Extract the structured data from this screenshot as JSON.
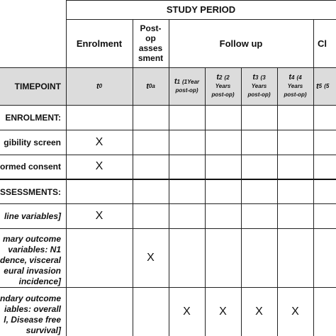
{
  "header": {
    "study_period": "STUDY PERIOD",
    "enrolment": "Enrolment",
    "postop_l1": "Post-",
    "postop_l2": "op",
    "postop_l3": "asses",
    "postop_l4": "sment",
    "follow_up": "Follow up",
    "close_partial": "Cl"
  },
  "timepoints": {
    "label": "TIMEPOINT",
    "t0": "t",
    "t0_sub": "0",
    "t0a": "t",
    "t0a_sub": "0a",
    "t1": "t",
    "t1_sub": "1",
    "t1_note_a": "(1Year",
    "t1_note_b": "post-op)",
    "t2": "t",
    "t2_sub": "2",
    "t2_note_a": "(2",
    "t2_note_b": "Years",
    "t2_note_c": "post-op)",
    "t3": "t",
    "t3_sub": "3",
    "t3_note_a": "(3",
    "t3_note_b": "Years",
    "t3_note_c": "post-op)",
    "t4": "t",
    "t4_sub": "4",
    "t4_note_a": "(4",
    "t4_note_b": "Years",
    "t4_note_c": "post-op)",
    "t5": "t",
    "t5_sub": "5",
    "t5_note": "(5"
  },
  "rows": {
    "enrolment_header": "ENROLMENT:",
    "eligibility": "gibility screen",
    "consent": "ormed consent",
    "assessments_header": "SSESSMENTS:",
    "baseline": "line variables]",
    "primary_l1": "mary outcome",
    "primary_l2": "variables: N1",
    "primary_l3": "dence, visceral",
    "primary_l4": "eural invasion",
    "primary_l5": "incidence]",
    "secondary_l1": "ndary outcome",
    "secondary_l2": "iables: overall",
    "secondary_l3": "l, Disease free",
    "secondary_l4": "survival]"
  },
  "marks": {
    "x": "X"
  },
  "colors": {
    "timepoint_row_bg": "#dcdcdc",
    "lines": "#222222"
  }
}
